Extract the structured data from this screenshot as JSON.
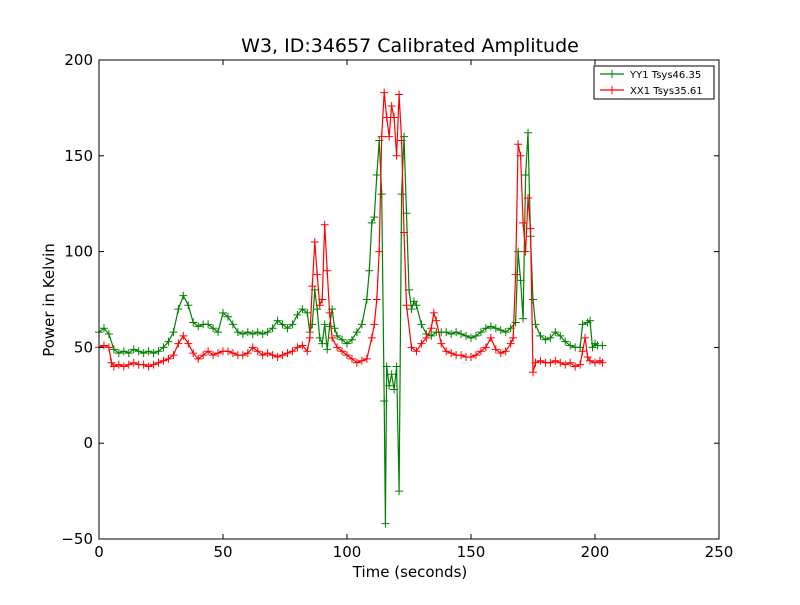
{
  "chart_data": {
    "type": "line",
    "title": "W3, ID:34657 Calibrated Amplitude",
    "xlabel": "Time (seconds)",
    "ylabel": "Power in Kelvin",
    "xlim": [
      0,
      250
    ],
    "ylim": [
      -50,
      200
    ],
    "xticks": [
      "0",
      "50",
      "100",
      "150",
      "200",
      "250"
    ],
    "yticks": [
      "200",
      "150",
      "100",
      "50",
      "0",
      "−50"
    ],
    "xtick_values": [
      0,
      50,
      100,
      150,
      200,
      250
    ],
    "ytick_values": [
      200,
      150,
      100,
      50,
      0,
      -50
    ],
    "grid": false,
    "legend_position": "top-right",
    "marker": "+",
    "series": [
      {
        "name": "YY1 Tsys46.35",
        "color": "#008000",
        "points": [
          [
            0,
            58
          ],
          [
            2,
            60
          ],
          [
            4,
            57
          ],
          [
            6,
            49
          ],
          [
            8,
            47
          ],
          [
            10,
            48
          ],
          [
            12,
            47
          ],
          [
            14,
            49
          ],
          [
            16,
            48
          ],
          [
            18,
            47
          ],
          [
            20,
            48
          ],
          [
            22,
            47
          ],
          [
            24,
            48
          ],
          [
            26,
            50
          ],
          [
            28,
            53
          ],
          [
            30,
            58
          ],
          [
            32,
            70
          ],
          [
            34,
            77
          ],
          [
            36,
            72
          ],
          [
            38,
            63
          ],
          [
            40,
            61
          ],
          [
            42,
            62
          ],
          [
            44,
            62
          ],
          [
            46,
            60
          ],
          [
            48,
            58
          ],
          [
            50,
            68
          ],
          [
            52,
            66
          ],
          [
            54,
            62
          ],
          [
            56,
            58
          ],
          [
            58,
            57
          ],
          [
            60,
            58
          ],
          [
            62,
            57
          ],
          [
            64,
            58
          ],
          [
            66,
            57
          ],
          [
            68,
            58
          ],
          [
            70,
            60
          ],
          [
            72,
            64
          ],
          [
            74,
            62
          ],
          [
            76,
            60
          ],
          [
            78,
            62
          ],
          [
            80,
            67
          ],
          [
            82,
            70
          ],
          [
            84,
            68
          ],
          [
            85,
            58
          ],
          [
            86,
            62
          ],
          [
            87,
            80
          ],
          [
            88,
            70
          ],
          [
            89,
            55
          ],
          [
            90,
            52
          ],
          [
            91,
            62
          ],
          [
            92,
            49
          ],
          [
            93,
            61
          ],
          [
            94,
            70
          ],
          [
            95,
            60
          ],
          [
            96,
            56
          ],
          [
            98,
            54
          ],
          [
            100,
            52
          ],
          [
            102,
            54
          ],
          [
            104,
            58
          ],
          [
            106,
            62
          ],
          [
            108,
            75
          ],
          [
            109,
            90
          ],
          [
            110,
            115
          ],
          [
            111,
            118
          ],
          [
            112,
            140
          ],
          [
            113,
            158
          ],
          [
            114,
            130
          ],
          [
            115,
            22
          ],
          [
            115.5,
            -42
          ],
          [
            116,
            40
          ],
          [
            117,
            30
          ],
          [
            118,
            36
          ],
          [
            119,
            28
          ],
          [
            120,
            40
          ],
          [
            121,
            -25
          ],
          [
            122,
            130
          ],
          [
            123,
            160
          ],
          [
            124,
            120
          ],
          [
            125,
            80
          ],
          [
            126,
            70
          ],
          [
            127,
            74
          ],
          [
            128,
            72
          ],
          [
            130,
            62
          ],
          [
            132,
            57
          ],
          [
            134,
            56
          ],
          [
            136,
            58
          ],
          [
            138,
            58
          ],
          [
            140,
            58
          ],
          [
            142,
            57
          ],
          [
            144,
            58
          ],
          [
            146,
            57
          ],
          [
            148,
            56
          ],
          [
            150,
            55
          ],
          [
            152,
            56
          ],
          [
            154,
            58
          ],
          [
            156,
            60
          ],
          [
            158,
            61
          ],
          [
            160,
            60
          ],
          [
            162,
            59
          ],
          [
            164,
            58
          ],
          [
            166,
            60
          ],
          [
            168,
            63
          ],
          [
            169,
            100
          ],
          [
            170,
            85
          ],
          [
            171,
            65
          ],
          [
            172,
            140
          ],
          [
            173,
            162
          ],
          [
            174,
            108
          ],
          [
            175,
            75
          ],
          [
            176,
            62
          ],
          [
            178,
            56
          ],
          [
            180,
            54
          ],
          [
            182,
            55
          ],
          [
            184,
            58
          ],
          [
            186,
            56
          ],
          [
            188,
            53
          ],
          [
            190,
            51
          ],
          [
            192,
            50
          ],
          [
            194,
            50
          ],
          [
            195,
            62
          ],
          [
            197,
            63
          ],
          [
            198,
            64
          ],
          [
            199,
            50
          ],
          [
            200,
            52
          ],
          [
            201,
            51
          ],
          [
            203,
            51
          ]
        ]
      },
      {
        "name": "XX1 Tsys35.61",
        "color": "#ff0000",
        "points": [
          [
            0,
            50
          ],
          [
            2,
            51
          ],
          [
            4,
            50
          ],
          [
            5,
            42
          ],
          [
            6,
            40
          ],
          [
            8,
            41
          ],
          [
            10,
            40
          ],
          [
            12,
            41
          ],
          [
            14,
            42
          ],
          [
            16,
            41
          ],
          [
            18,
            41
          ],
          [
            20,
            40
          ],
          [
            22,
            41
          ],
          [
            24,
            42
          ],
          [
            26,
            43
          ],
          [
            28,
            44
          ],
          [
            30,
            46
          ],
          [
            32,
            52
          ],
          [
            34,
            56
          ],
          [
            36,
            52
          ],
          [
            38,
            47
          ],
          [
            40,
            44
          ],
          [
            42,
            46
          ],
          [
            44,
            48
          ],
          [
            46,
            46
          ],
          [
            48,
            47
          ],
          [
            50,
            48
          ],
          [
            52,
            48
          ],
          [
            54,
            47
          ],
          [
            56,
            46
          ],
          [
            58,
            46
          ],
          [
            60,
            47
          ],
          [
            62,
            50
          ],
          [
            64,
            48
          ],
          [
            66,
            46
          ],
          [
            68,
            47
          ],
          [
            70,
            46
          ],
          [
            72,
            45
          ],
          [
            74,
            46
          ],
          [
            76,
            47
          ],
          [
            78,
            48
          ],
          [
            80,
            50
          ],
          [
            82,
            51
          ],
          [
            84,
            48
          ],
          [
            85,
            55
          ],
          [
            86,
            82
          ],
          [
            87,
            105
          ],
          [
            88,
            88
          ],
          [
            89,
            72
          ],
          [
            90,
            75
          ],
          [
            91,
            114
          ],
          [
            92,
            90
          ],
          [
            93,
            68
          ],
          [
            94,
            55
          ],
          [
            96,
            50
          ],
          [
            98,
            48
          ],
          [
            100,
            46
          ],
          [
            102,
            44
          ],
          [
            104,
            42
          ],
          [
            106,
            43
          ],
          [
            108,
            44
          ],
          [
            110,
            55
          ],
          [
            111,
            62
          ],
          [
            112,
            75
          ],
          [
            113,
            100
          ],
          [
            114,
            160
          ],
          [
            115,
            183
          ],
          [
            116,
            170
          ],
          [
            117,
            160
          ],
          [
            118,
            176
          ],
          [
            119,
            170
          ],
          [
            120,
            150
          ],
          [
            121,
            182
          ],
          [
            122,
            158
          ],
          [
            123,
            110
          ],
          [
            124,
            72
          ],
          [
            126,
            50
          ],
          [
            128,
            48
          ],
          [
            130,
            52
          ],
          [
            132,
            55
          ],
          [
            134,
            60
          ],
          [
            135,
            68
          ],
          [
            136,
            64
          ],
          [
            138,
            52
          ],
          [
            140,
            48
          ],
          [
            142,
            47
          ],
          [
            144,
            46
          ],
          [
            146,
            46
          ],
          [
            148,
            45
          ],
          [
            150,
            45
          ],
          [
            152,
            46
          ],
          [
            154,
            48
          ],
          [
            156,
            50
          ],
          [
            158,
            55
          ],
          [
            160,
            49
          ],
          [
            162,
            47
          ],
          [
            164,
            48
          ],
          [
            166,
            52
          ],
          [
            167,
            55
          ],
          [
            168,
            88
          ],
          [
            169,
            156
          ],
          [
            170,
            150
          ],
          [
            171,
            115
          ],
          [
            172,
            100
          ],
          [
            173,
            128
          ],
          [
            174,
            112
          ],
          [
            175,
            37
          ],
          [
            176,
            42
          ],
          [
            178,
            43
          ],
          [
            180,
            42
          ],
          [
            182,
            42
          ],
          [
            184,
            43
          ],
          [
            186,
            42
          ],
          [
            188,
            41
          ],
          [
            190,
            42
          ],
          [
            192,
            40
          ],
          [
            194,
            41
          ],
          [
            195,
            48
          ],
          [
            196,
            55
          ],
          [
            197,
            45
          ],
          [
            198,
            43
          ],
          [
            200,
            42
          ],
          [
            202,
            43
          ],
          [
            203,
            42
          ]
        ]
      }
    ]
  }
}
